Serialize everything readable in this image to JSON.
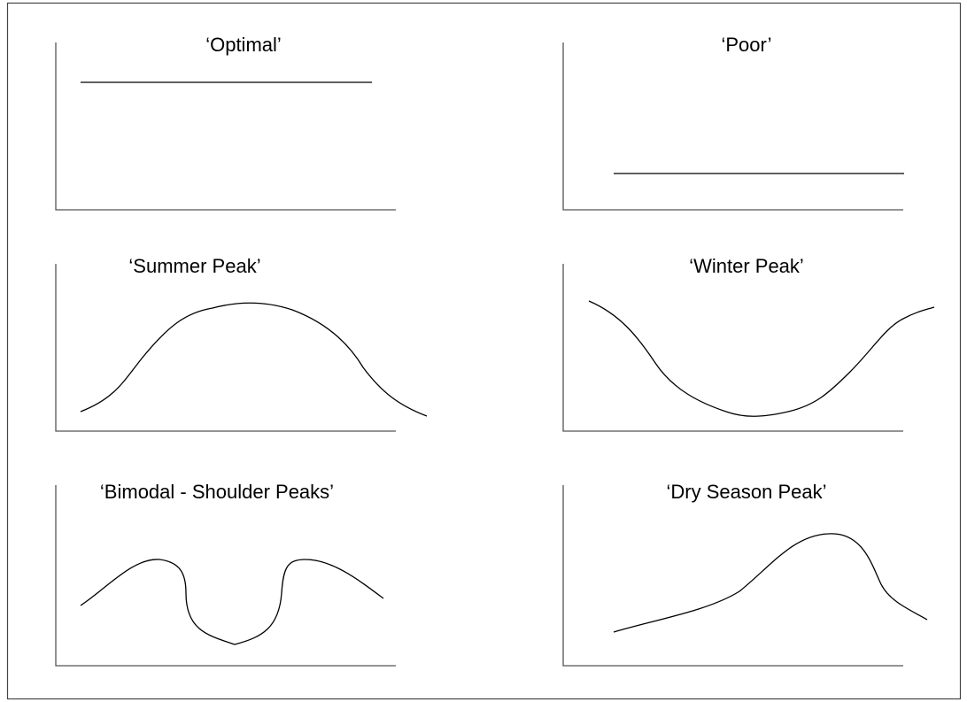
{
  "panels": [
    {
      "title": "‘Optimal’"
    },
    {
      "title": "‘Poor’"
    },
    {
      "title": "‘Summer Peak’"
    },
    {
      "title": "‘Winter Peak’"
    },
    {
      "title": "‘Bimodal - Shoulder Peaks’"
    },
    {
      "title": "‘Dry Season Peak’"
    }
  ]
}
